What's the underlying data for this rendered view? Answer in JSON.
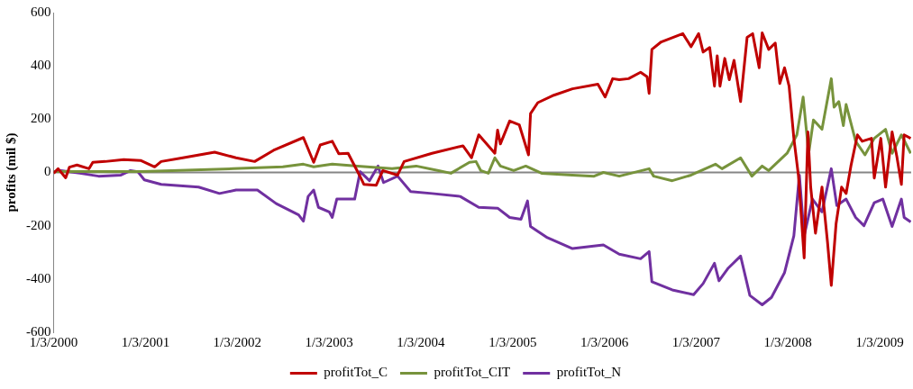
{
  "chart_data": {
    "type": "line",
    "ylabel": "profits (mil $)",
    "xlim": [
      "2000-01-03",
      "2009-05-08"
    ],
    "xticks": [
      {
        "value": "2000-01-03",
        "label": "1/3/2000"
      },
      {
        "value": "2001-01-03",
        "label": "1/3/2001"
      },
      {
        "value": "2002-01-03",
        "label": "1/3/2002"
      },
      {
        "value": "2003-01-03",
        "label": "1/3/2003"
      },
      {
        "value": "2004-01-03",
        "label": "1/3/2004"
      },
      {
        "value": "2005-01-03",
        "label": "1/3/2005"
      },
      {
        "value": "2006-01-03",
        "label": "1/3/2006"
      },
      {
        "value": "2007-01-03",
        "label": "1/3/2007"
      },
      {
        "value": "2008-01-03",
        "label": "1/3/2008"
      },
      {
        "value": "2009-01-03",
        "label": "1/3/2009"
      }
    ],
    "ylim": [
      -600,
      600
    ],
    "yticks": [
      -600,
      -400,
      -200,
      0,
      200,
      400,
      600
    ],
    "grid": false,
    "ref_lines": [
      {
        "axis": "y",
        "value": 0,
        "color": "#868686"
      }
    ],
    "legend": "bottom",
    "marker": "none",
    "line_style": "solid",
    "series": [
      {
        "name": "profitTot_C",
        "color": "#c00000",
        "x": [
          "2000-01-03",
          "2000-01-21",
          "2000-02-20",
          "2000-03-06",
          "2000-04-05",
          "2000-05-23",
          "2000-06-07",
          "2000-07-26",
          "2000-10-08",
          "2000-12-14",
          "2001-02-08",
          "2001-03-06",
          "2001-05-31",
          "2001-10-05",
          "2001-12-29",
          "2002-03-13",
          "2002-05-27",
          "2002-09-23",
          "2002-11-03",
          "2002-11-29",
          "2003-01-16",
          "2003-02-11",
          "2003-03-20",
          "2003-05-04",
          "2003-05-22",
          "2003-07-10",
          "2003-08-05",
          "2003-10-03",
          "2003-10-29",
          "2004-02-17",
          "2004-06-19",
          "2004-07-23",
          "2004-08-21",
          "2004-10-24",
          "2004-11-04",
          "2004-11-15",
          "2004-12-22",
          "2005-01-29",
          "2005-03-07",
          "2005-03-15",
          "2005-04-13",
          "2005-06-16",
          "2005-08-29",
          "2005-12-08",
          "2006-01-06",
          "2006-02-05",
          "2006-03-03",
          "2006-04-09",
          "2006-05-27",
          "2006-06-22",
          "2006-06-30",
          "2006-07-11",
          "2006-08-17",
          "2006-11-11",
          "2006-12-14",
          "2007-01-13",
          "2007-01-31",
          "2007-02-26",
          "2007-03-17",
          "2007-03-28",
          "2007-04-08",
          "2007-04-27",
          "2007-05-15",
          "2007-06-03",
          "2007-06-29",
          "2007-07-25",
          "2007-08-16",
          "2007-09-11",
          "2007-09-23",
          "2007-10-19",
          "2007-11-14",
          "2007-12-02",
          "2007-12-21",
          "2008-01-08",
          "2008-01-27",
          "2008-02-14",
          "2008-02-26",
          "2008-03-08",
          "2008-03-23",
          "2008-04-03",
          "2008-04-22",
          "2008-05-18",
          "2008-06-09",
          "2008-06-24",
          "2008-07-13",
          "2008-08-04",
          "2008-08-22",
          "2008-09-10",
          "2008-10-06",
          "2008-10-25",
          "2008-12-01",
          "2008-12-12",
          "2009-01-07",
          "2009-01-26",
          "2009-02-21",
          "2009-03-12",
          "2009-03-30",
          "2009-04-10",
          "2009-05-06"
        ],
        "values": [
          -3,
          14,
          -20,
          20,
          28,
          14,
          38,
          41,
          48,
          45,
          21,
          41,
          55,
          76,
          55,
          41,
          83,
          131,
          38,
          103,
          117,
          70,
          72,
          -10,
          -45,
          -48,
          7,
          -10,
          41,
          72,
          100,
          55,
          141,
          72,
          159,
          107,
          193,
          179,
          66,
          221,
          262,
          290,
          314,
          331,
          283,
          352,
          348,
          352,
          376,
          359,
          297,
          462,
          490,
          521,
          472,
          521,
          452,
          469,
          324,
          438,
          324,
          428,
          348,
          421,
          266,
          507,
          521,
          393,
          524,
          462,
          486,
          334,
          393,
          324,
          128,
          -10,
          -169,
          -321,
          152,
          -55,
          -228,
          -55,
          -262,
          -424,
          -193,
          -55,
          -79,
          24,
          141,
          117,
          128,
          -21,
          128,
          -55,
          152,
          59,
          -45,
          141,
          128
        ]
      },
      {
        "name": "profitTot_CIT",
        "color": "#77933c",
        "x": [
          "2000-01-03",
          "2000-12-21",
          "2001-12-18",
          "2002-07-03",
          "2002-09-23",
          "2002-11-03",
          "2003-01-16",
          "2003-04-27",
          "2003-09-11",
          "2003-12-16",
          "2004-03-14",
          "2004-05-02",
          "2004-07-15",
          "2004-08-10",
          "2004-08-29",
          "2004-09-28",
          "2004-10-24",
          "2004-11-15",
          "2005-01-07",
          "2005-02-24",
          "2005-04-28",
          "2005-08-29",
          "2005-11-23",
          "2005-12-30",
          "2006-03-03",
          "2006-06-30",
          "2006-07-18",
          "2006-09-30",
          "2006-12-14",
          "2007-03-21",
          "2007-04-16",
          "2007-06-29",
          "2007-08-13",
          "2007-09-23",
          "2007-10-19",
          "2007-12-31",
          "2008-02-08",
          "2008-03-04",
          "2008-03-15",
          "2008-03-26",
          "2008-04-14",
          "2008-05-18",
          "2008-06-24",
          "2008-07-05",
          "2008-07-24",
          "2008-08-11",
          "2008-08-22",
          "2008-09-29",
          "2008-11-05",
          "2008-12-12",
          "2009-01-26",
          "2009-02-21",
          "2009-03-30",
          "2009-05-06"
        ],
        "values": [
          3,
          3,
          14,
          21,
          31,
          21,
          31,
          24,
          14,
          24,
          7,
          -3,
          38,
          41,
          7,
          -3,
          55,
          24,
          7,
          24,
          -3,
          -10,
          -14,
          0,
          -14,
          14,
          -14,
          -31,
          -10,
          31,
          14,
          55,
          -14,
          24,
          7,
          72,
          141,
          283,
          176,
          72,
          197,
          162,
          352,
          245,
          266,
          176,
          255,
          117,
          66,
          128,
          162,
          72,
          141,
          72
        ]
      },
      {
        "name": "profitTot_N",
        "color": "#7030a0",
        "x": [
          "2000-01-03",
          "2000-02-02",
          "2000-04-16",
          "2000-06-30",
          "2000-09-27",
          "2000-11-04",
          "2000-12-03",
          "2000-12-29",
          "2001-03-06",
          "2001-08-02",
          "2001-10-24",
          "2001-12-29",
          "2002-03-24",
          "2002-06-07",
          "2002-09-04",
          "2002-09-23",
          "2002-10-12",
          "2002-11-03",
          "2002-11-22",
          "2003-01-04",
          "2003-01-16",
          "2003-02-03",
          "2003-04-15",
          "2003-05-07",
          "2003-06-13",
          "2003-07-17",
          "2003-08-08",
          "2003-10-03",
          "2003-11-24",
          "2004-02-17",
          "2004-06-08",
          "2004-08-21",
          "2004-11-04",
          "2004-12-22",
          "2005-02-05",
          "2005-03-03",
          "2005-03-15",
          "2005-05-21",
          "2005-08-29",
          "2005-12-30",
          "2006-03-03",
          "2006-05-27",
          "2006-06-30",
          "2006-07-11",
          "2006-09-30",
          "2006-12-24",
          "2007-01-31",
          "2007-03-17",
          "2007-04-04",
          "2007-05-11",
          "2007-06-29",
          "2007-08-05",
          "2007-09-23",
          "2007-10-30",
          "2007-12-21",
          "2008-01-27",
          "2008-02-18",
          "2008-03-08",
          "2008-04-10",
          "2008-05-18",
          "2008-06-24",
          "2008-07-16",
          "2008-08-22",
          "2008-09-29",
          "2008-11-01",
          "2008-12-12",
          "2009-01-15",
          "2009-02-21",
          "2009-03-30",
          "2009-04-10",
          "2009-05-06"
        ],
        "values": [
          3,
          7,
          -3,
          -14,
          -10,
          7,
          3,
          -28,
          -45,
          -55,
          -79,
          -66,
          -66,
          -117,
          -159,
          -183,
          -90,
          -66,
          -131,
          -148,
          -169,
          -100,
          -100,
          3,
          -31,
          24,
          -38,
          -14,
          -72,
          -79,
          -90,
          -131,
          -134,
          -169,
          -176,
          -107,
          -203,
          -245,
          -286,
          -272,
          -307,
          -324,
          -297,
          -410,
          -441,
          -459,
          -417,
          -341,
          -407,
          -359,
          -314,
          -462,
          -497,
          -469,
          -376,
          -238,
          -10,
          -238,
          -100,
          -148,
          14,
          -124,
          -100,
          -169,
          -200,
          -114,
          -100,
          -203,
          -100,
          -169,
          -186
        ]
      }
    ]
  }
}
